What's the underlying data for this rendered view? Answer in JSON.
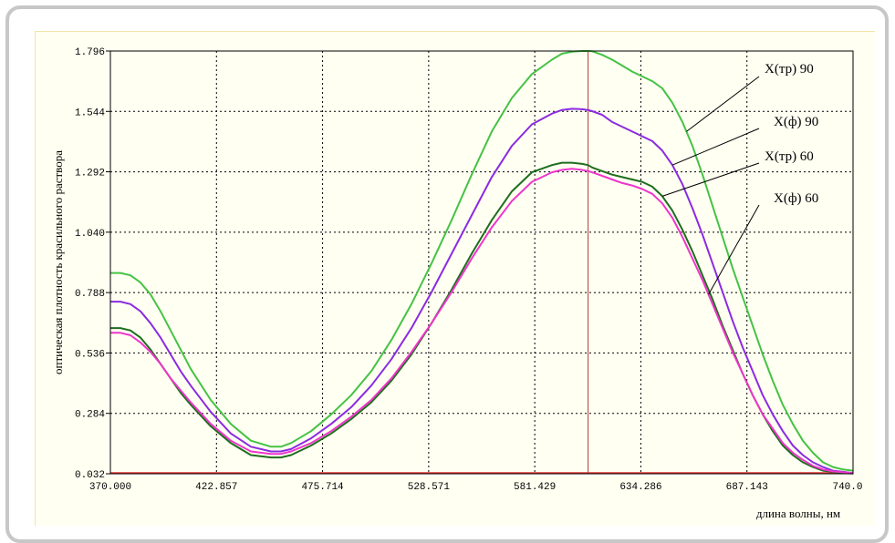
{
  "chart_data": {
    "type": "line",
    "title": "",
    "xlabel": "длина волны, нм",
    "ylabel": "оптическая плотность красильного раствора",
    "xlim": [
      370.0,
      740.0
    ],
    "ylim": [
      0.032,
      1.796
    ],
    "x_ticks": [
      "370.000",
      "422.857",
      "475.714",
      "528.571",
      "581.429",
      "634.286",
      "687.143",
      "740.0"
    ],
    "y_ticks": [
      "0.032",
      "0.284",
      "0.536",
      "0.788",
      "1.040",
      "1.292",
      "1.544",
      "1.796"
    ],
    "x_tick_values": [
      370.0,
      422.857,
      475.714,
      528.571,
      581.429,
      634.286,
      687.143,
      740.0
    ],
    "y_tick_values": [
      0.032,
      0.284,
      0.536,
      0.788,
      1.04,
      1.292,
      1.544,
      1.796
    ],
    "grid": true,
    "marker_line_x": 608,
    "baseline_y": 0.032,
    "colors": {
      "marker": "#b23a3a",
      "baseline": "#e03030",
      "grid": "#000000",
      "label_pointer": "#000000"
    },
    "x": [
      370,
      375,
      380,
      385,
      390,
      395,
      400,
      405,
      410,
      420,
      430,
      440,
      450,
      455,
      460,
      470,
      480,
      490,
      500,
      510,
      520,
      530,
      540,
      550,
      560,
      570,
      580,
      590,
      595,
      600,
      605,
      608,
      610,
      615,
      620,
      625,
      630,
      635,
      640,
      645,
      650,
      655,
      660,
      665,
      670,
      675,
      680,
      685,
      690,
      695,
      700,
      705,
      710,
      715,
      720,
      725,
      730,
      735,
      740
    ],
    "series": [
      {
        "name": "X(тр) 90",
        "color": "#45c245",
        "values": [
          0.87,
          0.87,
          0.86,
          0.83,
          0.78,
          0.71,
          0.63,
          0.55,
          0.47,
          0.34,
          0.24,
          0.17,
          0.145,
          0.145,
          0.16,
          0.21,
          0.28,
          0.36,
          0.46,
          0.59,
          0.74,
          0.91,
          1.09,
          1.28,
          1.46,
          1.6,
          1.7,
          1.76,
          1.785,
          1.793,
          1.796,
          1.796,
          1.795,
          1.78,
          1.76,
          1.735,
          1.71,
          1.69,
          1.67,
          1.64,
          1.58,
          1.5,
          1.4,
          1.28,
          1.15,
          1.02,
          0.89,
          0.77,
          0.65,
          0.53,
          0.42,
          0.32,
          0.24,
          0.17,
          0.12,
          0.08,
          0.06,
          0.05,
          0.045
        ]
      },
      {
        "name": "X(ф) 90",
        "color": "#8a2be2",
        "values": [
          0.75,
          0.75,
          0.74,
          0.71,
          0.66,
          0.6,
          0.53,
          0.46,
          0.4,
          0.29,
          0.2,
          0.145,
          0.125,
          0.125,
          0.135,
          0.18,
          0.24,
          0.31,
          0.4,
          0.51,
          0.64,
          0.79,
          0.95,
          1.11,
          1.27,
          1.4,
          1.49,
          1.535,
          1.55,
          1.555,
          1.553,
          1.55,
          1.545,
          1.53,
          1.5,
          1.48,
          1.46,
          1.44,
          1.42,
          1.38,
          1.32,
          1.24,
          1.14,
          1.03,
          0.91,
          0.79,
          0.67,
          0.56,
          0.46,
          0.36,
          0.28,
          0.21,
          0.15,
          0.11,
          0.08,
          0.06,
          0.045,
          0.04,
          0.035
        ]
      },
      {
        "name": "X(тр) 60",
        "color": "#1e6e1e",
        "values": [
          0.64,
          0.64,
          0.63,
          0.6,
          0.55,
          0.49,
          0.43,
          0.37,
          0.32,
          0.23,
          0.16,
          0.11,
          0.1,
          0.1,
          0.11,
          0.15,
          0.2,
          0.26,
          0.33,
          0.42,
          0.53,
          0.66,
          0.8,
          0.95,
          1.09,
          1.21,
          1.29,
          1.32,
          1.33,
          1.33,
          1.325,
          1.32,
          1.31,
          1.295,
          1.28,
          1.27,
          1.26,
          1.25,
          1.23,
          1.19,
          1.13,
          1.05,
          0.96,
          0.86,
          0.76,
          0.65,
          0.55,
          0.45,
          0.36,
          0.28,
          0.21,
          0.15,
          0.11,
          0.08,
          0.06,
          0.045,
          0.04,
          0.035,
          0.033
        ]
      },
      {
        "name": "X(ф) 60",
        "color": "#ee35cc",
        "values": [
          0.62,
          0.62,
          0.61,
          0.58,
          0.54,
          0.49,
          0.43,
          0.38,
          0.33,
          0.24,
          0.17,
          0.125,
          0.115,
          0.115,
          0.125,
          0.16,
          0.21,
          0.27,
          0.34,
          0.43,
          0.54,
          0.66,
          0.79,
          0.93,
          1.06,
          1.17,
          1.25,
          1.29,
          1.3,
          1.305,
          1.3,
          1.295,
          1.29,
          1.275,
          1.26,
          1.245,
          1.235,
          1.22,
          1.2,
          1.16,
          1.1,
          1.02,
          0.93,
          0.84,
          0.74,
          0.64,
          0.54,
          0.45,
          0.36,
          0.28,
          0.22,
          0.16,
          0.12,
          0.09,
          0.065,
          0.05,
          0.042,
          0.038,
          0.035
        ]
      }
    ],
    "labels": [
      {
        "text": "X(тр) 90",
        "series": 0,
        "anchor_x": 657
      },
      {
        "text": "X(ф) 90",
        "series": 1,
        "anchor_x": 650
      },
      {
        "text": "X(тр) 60",
        "series": 2,
        "anchor_x": 645
      },
      {
        "text": "X(ф) 60",
        "series": 3,
        "anchor_x": 668
      }
    ]
  }
}
